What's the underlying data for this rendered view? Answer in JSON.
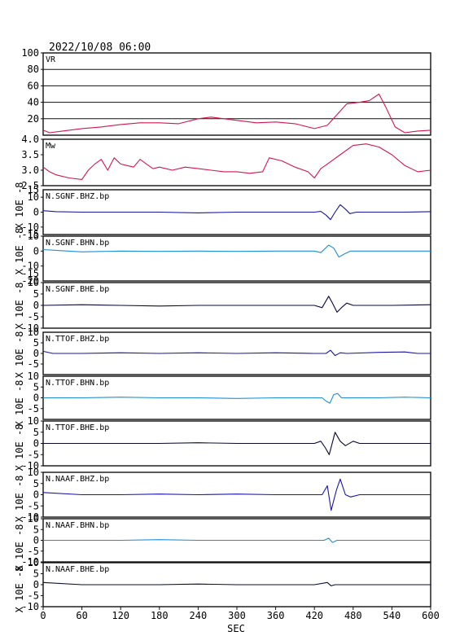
{
  "chart_data": {
    "type": "line",
    "datetime": "2022/10/08 06:00",
    "xlabel": "SEC",
    "xlim": [
      0,
      600
    ],
    "xticks": [
      0,
      60,
      120,
      180,
      240,
      300,
      360,
      420,
      480,
      540,
      600
    ],
    "unit_label": "X 10E -8",
    "panels": [
      {
        "name": "VR",
        "color": "#d4154f",
        "ylim": [
          0,
          100
        ],
        "yticks": [
          20,
          40,
          60,
          80,
          100
        ],
        "gridlines": [
          20,
          40,
          60,
          80
        ],
        "points": [
          [
            0,
            6
          ],
          [
            10,
            3
          ],
          [
            30,
            5
          ],
          [
            60,
            8
          ],
          [
            90,
            10
          ],
          [
            120,
            13
          ],
          [
            150,
            15
          ],
          [
            180,
            15
          ],
          [
            210,
            14
          ],
          [
            240,
            20
          ],
          [
            260,
            22
          ],
          [
            280,
            20
          ],
          [
            300,
            18
          ],
          [
            330,
            15
          ],
          [
            360,
            16
          ],
          [
            390,
            14
          ],
          [
            420,
            8
          ],
          [
            440,
            12
          ],
          [
            455,
            25
          ],
          [
            470,
            38
          ],
          [
            490,
            40
          ],
          [
            505,
            42
          ],
          [
            520,
            50
          ],
          [
            530,
            35
          ],
          [
            545,
            10
          ],
          [
            560,
            3
          ],
          [
            580,
            5
          ],
          [
            600,
            6
          ]
        ]
      },
      {
        "name": "Mw",
        "color": "#d4154f",
        "ylim": [
          2.5,
          4.0
        ],
        "yticks": [
          2.5,
          3.0,
          3.5,
          4.0
        ],
        "ytick_labels": [
          "2.5",
          "3.0",
          "3.5",
          "4.0"
        ],
        "points": [
          [
            0,
            3.1
          ],
          [
            10,
            2.95
          ],
          [
            20,
            2.85
          ],
          [
            40,
            2.75
          ],
          [
            60,
            2.7
          ],
          [
            70,
            3.0
          ],
          [
            80,
            3.2
          ],
          [
            90,
            3.35
          ],
          [
            100,
            3.0
          ],
          [
            110,
            3.4
          ],
          [
            120,
            3.2
          ],
          [
            130,
            3.15
          ],
          [
            140,
            3.1
          ],
          [
            150,
            3.35
          ],
          [
            160,
            3.2
          ],
          [
            170,
            3.05
          ],
          [
            180,
            3.1
          ],
          [
            200,
            3.0
          ],
          [
            220,
            3.1
          ],
          [
            240,
            3.05
          ],
          [
            260,
            3.0
          ],
          [
            280,
            2.95
          ],
          [
            300,
            2.95
          ],
          [
            320,
            2.9
          ],
          [
            340,
            2.95
          ],
          [
            350,
            3.4
          ],
          [
            370,
            3.3
          ],
          [
            390,
            3.1
          ],
          [
            410,
            2.95
          ],
          [
            420,
            2.75
          ],
          [
            430,
            3.05
          ],
          [
            440,
            3.2
          ],
          [
            460,
            3.5
          ],
          [
            480,
            3.8
          ],
          [
            500,
            3.85
          ],
          [
            520,
            3.75
          ],
          [
            540,
            3.5
          ],
          [
            560,
            3.15
          ],
          [
            580,
            2.95
          ],
          [
            600,
            3.0
          ]
        ]
      },
      {
        "name": "N.SGNF.BHZ.bp",
        "color": "#1a16a6",
        "ylim": [
          -15,
          15
        ],
        "yticks": [
          -10,
          0,
          10
        ],
        "ytick_labels": [
          "-10",
          "0",
          "10"
        ],
        "dashed_ticks": [
          -15,
          15
        ],
        "points": [
          [
            0,
            1
          ],
          [
            20,
            0.3
          ],
          [
            60,
            0
          ],
          [
            120,
            0
          ],
          [
            180,
            0
          ],
          [
            240,
            -0.5
          ],
          [
            300,
            0
          ],
          [
            360,
            0
          ],
          [
            420,
            0
          ],
          [
            430,
            0.5
          ],
          [
            438,
            -2
          ],
          [
            445,
            -5
          ],
          [
            452,
            0
          ],
          [
            460,
            5
          ],
          [
            468,
            2
          ],
          [
            475,
            -1
          ],
          [
            485,
            0
          ],
          [
            520,
            0
          ],
          [
            560,
            0
          ],
          [
            600,
            0.3
          ]
        ]
      },
      {
        "name": "N.SGNF.BHN.bp",
        "color": "#1e8fd6",
        "ylim": [
          -20,
          10
        ],
        "yticks": [
          -10,
          0,
          10
        ],
        "ytick_labels": [
          "-10",
          "0",
          "10"
        ],
        "dashed_ticks": [
          -15,
          -20
        ],
        "points": [
          [
            0,
            1
          ],
          [
            20,
            0.5
          ],
          [
            60,
            -0.5
          ],
          [
            120,
            0
          ],
          [
            180,
            -0.2
          ],
          [
            240,
            0
          ],
          [
            300,
            -0.2
          ],
          [
            360,
            0
          ],
          [
            420,
            0
          ],
          [
            430,
            -1
          ],
          [
            442,
            4
          ],
          [
            450,
            2
          ],
          [
            458,
            -4
          ],
          [
            466,
            -2
          ],
          [
            476,
            0
          ],
          [
            500,
            0
          ],
          [
            560,
            0
          ],
          [
            600,
            0
          ]
        ]
      },
      {
        "name": "N.SGNF.BHE.bp",
        "color": "#0a0a35",
        "ylim": [
          -10,
          10
        ],
        "yticks": [
          -10,
          -5,
          0,
          5,
          10
        ],
        "ytick_labels": [
          "-10",
          "-5",
          "0",
          "5",
          "10"
        ],
        "points": [
          [
            0,
            0
          ],
          [
            60,
            0.3
          ],
          [
            120,
            0
          ],
          [
            180,
            -0.3
          ],
          [
            240,
            0
          ],
          [
            300,
            0
          ],
          [
            360,
            0
          ],
          [
            420,
            0
          ],
          [
            432,
            -1
          ],
          [
            442,
            4
          ],
          [
            448,
            1
          ],
          [
            455,
            -3
          ],
          [
            462,
            -1
          ],
          [
            470,
            1
          ],
          [
            480,
            0
          ],
          [
            500,
            0
          ],
          [
            540,
            0
          ],
          [
            600,
            0.3
          ]
        ]
      },
      {
        "name": "N.TTOF.BHZ.bp",
        "color": "#1a16a6",
        "ylim": [
          -10,
          10
        ],
        "yticks": [
          -5,
          0,
          5
        ],
        "ytick_labels": [
          "-5",
          "0",
          "5"
        ],
        "dashed_ticks": [
          10
        ],
        "points": [
          [
            0,
            1
          ],
          [
            15,
            0
          ],
          [
            60,
            0
          ],
          [
            120,
            0.3
          ],
          [
            180,
            0
          ],
          [
            240,
            0.3
          ],
          [
            300,
            0
          ],
          [
            360,
            0.3
          ],
          [
            420,
            0
          ],
          [
            438,
            0
          ],
          [
            445,
            1.5
          ],
          [
            452,
            -1
          ],
          [
            460,
            0.3
          ],
          [
            470,
            0
          ],
          [
            520,
            0.5
          ],
          [
            560,
            0.7
          ],
          [
            580,
            0
          ],
          [
            600,
            0
          ]
        ]
      },
      {
        "name": "N.TTOF.BHN.bp",
        "color": "#1e8fd6",
        "ylim": [
          -10,
          10
        ],
        "yticks": [
          -5,
          0,
          5
        ],
        "ytick_labels": [
          "-5",
          "0",
          "5"
        ],
        "dashed_ticks": [
          10
        ],
        "points": [
          [
            0,
            0
          ],
          [
            60,
            0
          ],
          [
            120,
            0.3
          ],
          [
            180,
            0
          ],
          [
            240,
            0
          ],
          [
            300,
            -0.3
          ],
          [
            360,
            0
          ],
          [
            420,
            0
          ],
          [
            432,
            0
          ],
          [
            438,
            -1.5
          ],
          [
            444,
            -2.5
          ],
          [
            450,
            1.5
          ],
          [
            456,
            2
          ],
          [
            462,
            0
          ],
          [
            470,
            0
          ],
          [
            520,
            0
          ],
          [
            560,
            0.3
          ],
          [
            600,
            0
          ]
        ]
      },
      {
        "name": "N.TTOF.BHE.bp",
        "color": "#0a0a35",
        "ylim": [
          -10,
          10
        ],
        "yticks": [
          -10,
          -5,
          0,
          5,
          10
        ],
        "ytick_labels": [
          "-10",
          "-5",
          "0",
          "5",
          "10"
        ],
        "points": [
          [
            0,
            0
          ],
          [
            60,
            0
          ],
          [
            120,
            0
          ],
          [
            180,
            0
          ],
          [
            240,
            0.3
          ],
          [
            300,
            0
          ],
          [
            360,
            0
          ],
          [
            420,
            0
          ],
          [
            430,
            1
          ],
          [
            437,
            -2
          ],
          [
            443,
            -5
          ],
          [
            452,
            5
          ],
          [
            460,
            1
          ],
          [
            468,
            -1
          ],
          [
            480,
            1
          ],
          [
            490,
            0
          ],
          [
            520,
            0
          ],
          [
            600,
            0
          ]
        ]
      },
      {
        "name": "N.NAAF.BHZ.bp",
        "color": "#1a16a6",
        "ylim": [
          -10,
          10
        ],
        "yticks": [
          -10,
          -5,
          0,
          5,
          10
        ],
        "ytick_labels": [
          "-10",
          "-5",
          "0",
          "5",
          "10"
        ],
        "points": [
          [
            0,
            1
          ],
          [
            60,
            0
          ],
          [
            120,
            0
          ],
          [
            180,
            0.3
          ],
          [
            240,
            0
          ],
          [
            300,
            0.3
          ],
          [
            360,
            0
          ],
          [
            420,
            0
          ],
          [
            432,
            0
          ],
          [
            440,
            4
          ],
          [
            446,
            -7
          ],
          [
            454,
            2
          ],
          [
            460,
            7
          ],
          [
            468,
            0
          ],
          [
            476,
            -1
          ],
          [
            490,
            0
          ],
          [
            540,
            0
          ],
          [
            600,
            0
          ]
        ]
      },
      {
        "name": "N.NAAF.BHN.bp",
        "color": "#1e8fd6",
        "ylim": [
          -10,
          10
        ],
        "yticks": [
          -10,
          -5,
          0,
          5,
          10
        ],
        "ytick_labels": [
          "-10",
          "-5",
          "0",
          "5",
          "10"
        ],
        "points": [
          [
            0,
            0
          ],
          [
            60,
            0
          ],
          [
            120,
            0
          ],
          [
            180,
            0.3
          ],
          [
            240,
            0
          ],
          [
            300,
            0
          ],
          [
            360,
            0
          ],
          [
            420,
            0
          ],
          [
            435,
            0
          ],
          [
            442,
            1
          ],
          [
            448,
            -1
          ],
          [
            455,
            0
          ],
          [
            470,
            0
          ],
          [
            540,
            0
          ],
          [
            600,
            0
          ]
        ]
      },
      {
        "name": "N.NAAF.BHE.bp",
        "color": "#0a0a35",
        "ylim": [
          -10,
          10
        ],
        "yticks": [
          -10,
          -5,
          0,
          5,
          10
        ],
        "ytick_labels": [
          "-10",
          "-5",
          "0",
          "5",
          "10"
        ],
        "points": [
          [
            0,
            1
          ],
          [
            60,
            0
          ],
          [
            120,
            0
          ],
          [
            180,
            0
          ],
          [
            240,
            0.3
          ],
          [
            300,
            0
          ],
          [
            360,
            0
          ],
          [
            420,
            0
          ],
          [
            440,
            1
          ],
          [
            446,
            -0.5
          ],
          [
            452,
            0
          ],
          [
            470,
            0
          ],
          [
            540,
            0
          ],
          [
            600,
            0
          ]
        ]
      }
    ]
  }
}
